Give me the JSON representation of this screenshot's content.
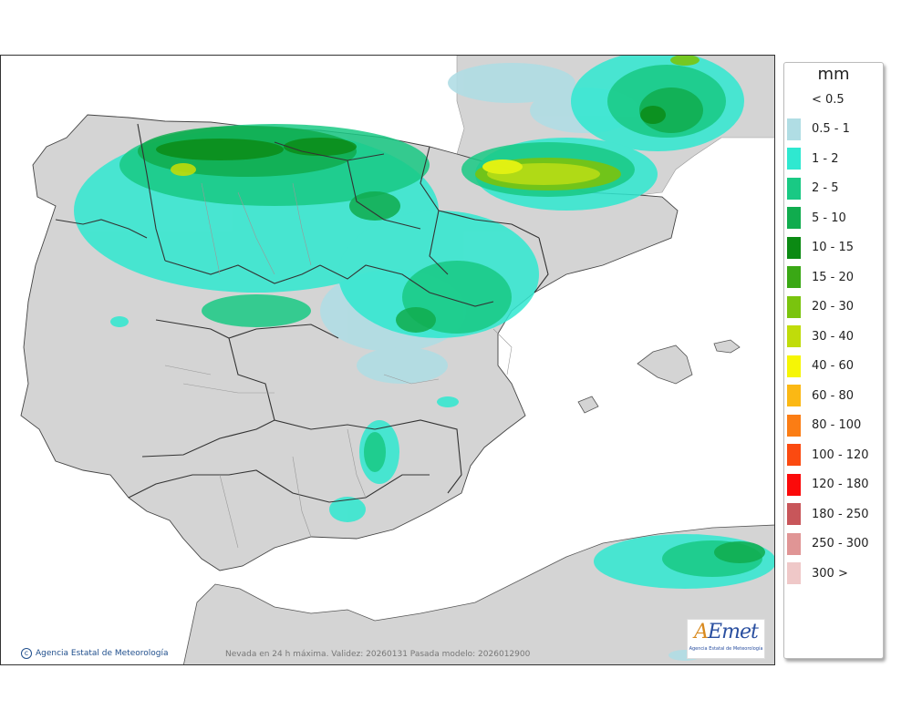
{
  "legend": {
    "title": "mm",
    "items": [
      {
        "label": "< 0.5",
        "color": "#ffffff"
      },
      {
        "label": "0.5 - 1",
        "color": "#b0dde4"
      },
      {
        "label": "1 - 2",
        "color": "#2fe8d0"
      },
      {
        "label": "2 - 5",
        "color": "#19c984"
      },
      {
        "label": "5 - 10",
        "color": "#10ac4e"
      },
      {
        "label": "10 - 15",
        "color": "#0b8a13"
      },
      {
        "label": "15 - 20",
        "color": "#3aa815"
      },
      {
        "label": "20 - 30",
        "color": "#7ac40e"
      },
      {
        "label": "30 - 40",
        "color": "#c0dc0a"
      },
      {
        "label": "40 - 60",
        "color": "#f6f605"
      },
      {
        "label": "60 - 80",
        "color": "#fbb814"
      },
      {
        "label": "80 - 100",
        "color": "#fb7d14"
      },
      {
        "label": "100 - 120",
        "color": "#fb4a10"
      },
      {
        "label": "120 - 180",
        "color": "#fb0a0a"
      },
      {
        "label": "180 - 250",
        "color": "#c8565a"
      },
      {
        "label": "250 - 300",
        "color": "#e09595"
      },
      {
        "label": "300 >",
        "color": "#efc8c8"
      }
    ]
  },
  "footer": {
    "attribution": "Agencia Estatal de Meteorología",
    "caption": "Nevada en 24 h máxima. Validez: 20260131 Pasada modelo: 2026012900"
  },
  "logo": {
    "subtitle": "Agencia Estatal de Meteorología"
  },
  "colors": {
    "land": "#d4d4d4",
    "sea": "#ffffff",
    "border": "#333333"
  }
}
